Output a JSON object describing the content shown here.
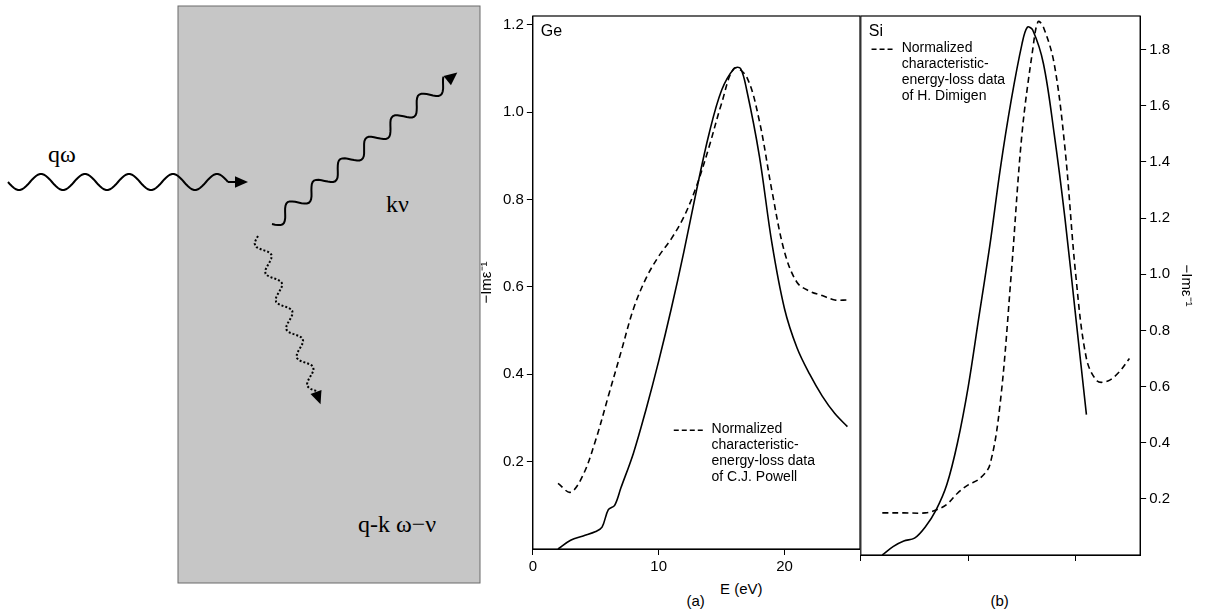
{
  "diagram": {
    "incident": "qω",
    "scattered": "kν",
    "excitation": "q-k ω−ν"
  },
  "chart_data": [
    {
      "type": "line",
      "title": "Ge",
      "panel": "(a)",
      "x_label": "E (eV)",
      "y_label": "−Imε⁻¹",
      "xlim": [
        0,
        26
      ],
      "xticks": [
        0,
        10,
        20
      ],
      "ylim": [
        0,
        1.22
      ],
      "yticks": [
        0.2,
        0.4,
        0.6,
        0.8,
        {
          "value": 1,
          "label": "1.0"
        },
        1.2
      ],
      "annotation": "Normalized characteristic-energy-loss data of C.J. Powell",
      "grid": false,
      "series": [
        {
          "line_style": "solid",
          "color": "#000000",
          "x": [
            2,
            3,
            4,
            5,
            5.5,
            6,
            6.5,
            7,
            8,
            9,
            10,
            11,
            12,
            13,
            14,
            15,
            16,
            16.5,
            17,
            18,
            19,
            20,
            21,
            22,
            23,
            24,
            25
          ],
          "values": [
            0,
            0.02,
            0.03,
            0.04,
            0.05,
            0.09,
            0.1,
            0.14,
            0.22,
            0.32,
            0.43,
            0.55,
            0.68,
            0.82,
            0.95,
            1.05,
            1.1,
            1.1,
            1.05,
            0.9,
            0.7,
            0.55,
            0.46,
            0.4,
            0.35,
            0.31,
            0.28
          ]
        },
        {
          "line_style": "dashed",
          "color": "#000000",
          "x": [
            2,
            3,
            4,
            5,
            6,
            7,
            8,
            9,
            10,
            11,
            12,
            13,
            14,
            15,
            16,
            17,
            18,
            19,
            20,
            21,
            22,
            23,
            24,
            25
          ],
          "values": [
            0.15,
            0.13,
            0.17,
            0.25,
            0.35,
            0.45,
            0.55,
            0.62,
            0.67,
            0.71,
            0.76,
            0.83,
            0.92,
            1.02,
            1.1,
            1.08,
            0.98,
            0.82,
            0.68,
            0.61,
            0.59,
            0.58,
            0.57,
            0.57
          ]
        }
      ]
    },
    {
      "type": "line",
      "title": "Si",
      "panel": "(b)",
      "y_label": "−Imε⁻¹",
      "xlim": [
        0,
        26
      ],
      "xticks": [
        0,
        10,
        20
      ],
      "ylim": [
        0,
        1.92
      ],
      "yticks": [
        0.2,
        0.4,
        0.6,
        0.8,
        {
          "value": 1,
          "label": "1.0"
        },
        1.2,
        1.4,
        1.6,
        1.8
      ],
      "tick_labels": "y",
      "annotation": "Normalized characteristic-energy-loss data of H. Dimigen",
      "grid": false,
      "series": [
        {
          "line_style": "solid",
          "color": "#000000",
          "x": [
            2,
            3,
            4,
            5,
            6,
            7,
            8,
            9,
            10,
            11,
            12,
            13,
            14,
            15,
            15.5,
            16,
            17,
            18,
            19,
            20,
            21
          ],
          "values": [
            0,
            0.03,
            0.05,
            0.06,
            0.1,
            0.16,
            0.25,
            0.4,
            0.6,
            0.85,
            1.1,
            1.38,
            1.62,
            1.82,
            1.88,
            1.87,
            1.75,
            1.5,
            1.2,
            0.85,
            0.5
          ]
        },
        {
          "line_style": "dashed",
          "color": "#000000",
          "x": [
            2,
            4,
            6,
            7,
            8,
            9,
            10,
            11,
            12,
            13,
            14,
            15,
            16,
            16.5,
            17,
            18,
            19,
            20,
            21,
            22,
            23,
            24,
            25
          ],
          "values": [
            0.15,
            0.15,
            0.15,
            0.16,
            0.18,
            0.22,
            0.25,
            0.27,
            0.32,
            0.55,
            1.0,
            1.5,
            1.8,
            1.9,
            1.88,
            1.75,
            1.45,
            1.0,
            0.7,
            0.62,
            0.62,
            0.65,
            0.7
          ]
        }
      ]
    }
  ]
}
